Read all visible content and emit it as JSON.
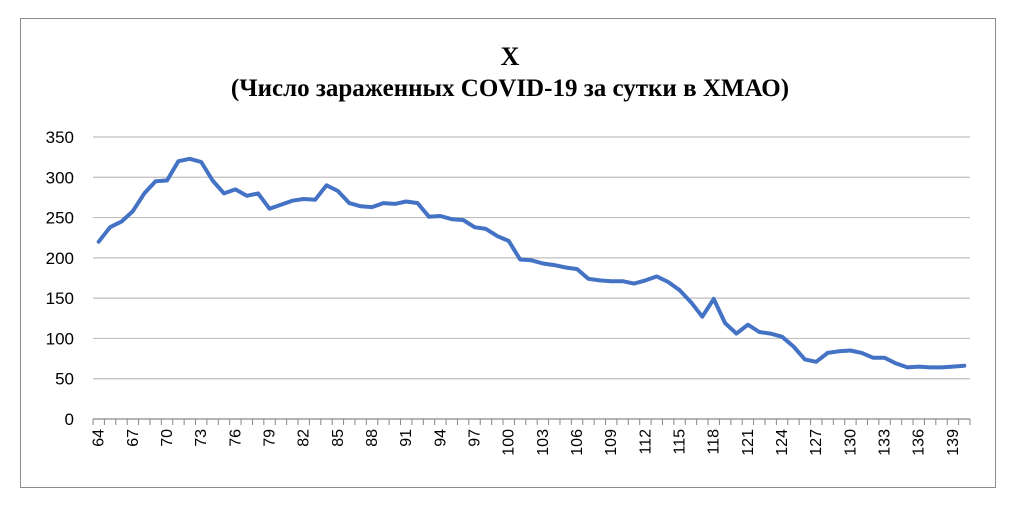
{
  "chart_data": {
    "type": "line",
    "title": "X",
    "subtitle": "(Число зараженных COVID-19 за сутки в ХМАО)",
    "xlabel": "",
    "ylabel": "",
    "ylim": [
      0,
      350
    ],
    "yticks": [
      0,
      50,
      100,
      150,
      200,
      250,
      300,
      350
    ],
    "xlim": [
      64,
      140
    ],
    "xticks": [
      64,
      67,
      70,
      73,
      76,
      79,
      82,
      85,
      88,
      91,
      94,
      97,
      100,
      103,
      106,
      109,
      112,
      115,
      118,
      121,
      124,
      127,
      130,
      133,
      136,
      139
    ],
    "grid": true,
    "legend": "none",
    "color": "#4472c4",
    "series": [
      {
        "x": [
          64,
          65,
          66,
          67,
          68,
          69,
          70,
          71,
          72,
          73,
          74,
          75,
          76,
          77,
          78,
          79,
          80,
          81,
          82,
          83,
          84,
          85,
          86,
          87,
          88,
          89,
          90,
          91,
          92,
          93,
          94,
          95,
          96,
          97,
          98,
          99,
          100,
          101,
          102,
          103,
          104,
          105,
          106,
          107,
          108,
          109,
          110,
          111,
          112,
          113,
          114,
          115,
          116,
          117,
          118,
          119,
          120,
          121,
          122,
          123,
          124,
          125,
          126,
          127,
          128,
          129,
          130,
          131,
          132,
          133,
          134,
          135,
          136,
          137,
          138,
          139,
          140
        ],
        "values": [
          220,
          238,
          245,
          258,
          280,
          295,
          296,
          320,
          323,
          319,
          296,
          280,
          285,
          277,
          280,
          261,
          266,
          271,
          273,
          272,
          290,
          283,
          268,
          264,
          263,
          268,
          267,
          270,
          268,
          251,
          252,
          248,
          247,
          238,
          236,
          227,
          221,
          198,
          197,
          193,
          191,
          188,
          186,
          174,
          172,
          171,
          171,
          168,
          172,
          177,
          170,
          160,
          145,
          127,
          149,
          119,
          106,
          117,
          108,
          106,
          102,
          90,
          74,
          71,
          82,
          84,
          85,
          82,
          76,
          76,
          69,
          64,
          65,
          64,
          64,
          65,
          66
        ]
      }
    ]
  }
}
